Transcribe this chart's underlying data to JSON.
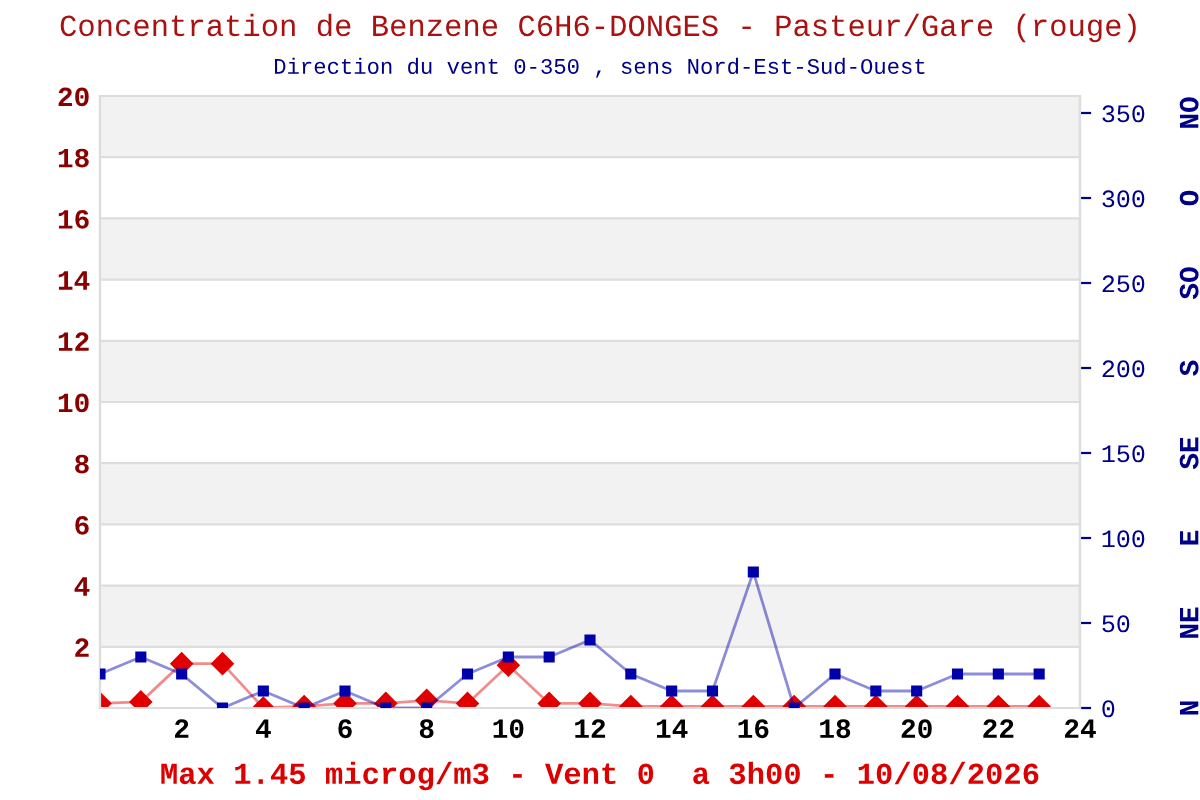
{
  "chart_data": {
    "type": "line",
    "title": "Concentration de Benzene C6H6-DONGES - Pasteur/Gare (rouge)",
    "subtitle": "Direction du vent 0-350 , sens Nord-Est-Sud-Ouest",
    "annotations": [
      "Max 1.45 microg/m3 - Vent 0  a 3h00 - 10/08/2026",
      "N",
      "NE",
      "E",
      "SE",
      "S",
      "SO",
      "O",
      "NO"
    ],
    "x": [
      0,
      1,
      2,
      3,
      4,
      5,
      6,
      7,
      8,
      9,
      10,
      11,
      12,
      13,
      14,
      15,
      16,
      17,
      18,
      19,
      20,
      21,
      22,
      23
    ],
    "series": [
      {
        "color": "#0000aa",
        "axis": "y2",
        "marker": "square",
        "values": [
          20,
          30,
          20,
          0,
          10,
          0,
          10,
          0,
          0,
          20,
          30,
          30,
          40,
          20,
          10,
          10,
          80,
          0,
          20,
          10,
          10,
          20,
          20,
          20
        ]
      },
      {
        "color": "#e00000",
        "axis": "y",
        "marker": "diamond",
        "values": [
          0.15,
          0.2,
          1.45,
          1.45,
          0,
          0.05,
          0.15,
          0.15,
          0.25,
          0.15,
          1.4,
          0.15,
          0.15,
          0.05,
          0.05,
          0.05,
          0.05,
          0.05,
          0.05,
          0.05,
          0.05,
          0.05,
          0.05,
          0.05
        ]
      }
    ],
    "xlim": [
      0,
      24
    ],
    "xticks": [
      2,
      4,
      6,
      8,
      10,
      12,
      14,
      16,
      18,
      20,
      22,
      24
    ],
    "ylim": [
      0,
      20
    ],
    "yticks": [
      2,
      4,
      6,
      8,
      10,
      12,
      14,
      16,
      18,
      20
    ],
    "y2lim": [
      0,
      360
    ],
    "y2ticks": [
      0,
      50,
      100,
      150,
      200,
      250,
      300,
      350
    ],
    "bands": [
      {
        "axis": "y",
        "from": 2,
        "to": 4,
        "color": "#f2f2f2"
      },
      {
        "axis": "y",
        "from": 6,
        "to": 8,
        "color": "#f2f2f2"
      },
      {
        "axis": "y",
        "from": 10,
        "to": 12,
        "color": "#f2f2f2"
      },
      {
        "axis": "y",
        "from": 14,
        "to": 16,
        "color": "#f2f2f2"
      },
      {
        "axis": "y",
        "from": 18,
        "to": 20,
        "color": "#f2f2f2"
      }
    ],
    "grid": "y"
  }
}
